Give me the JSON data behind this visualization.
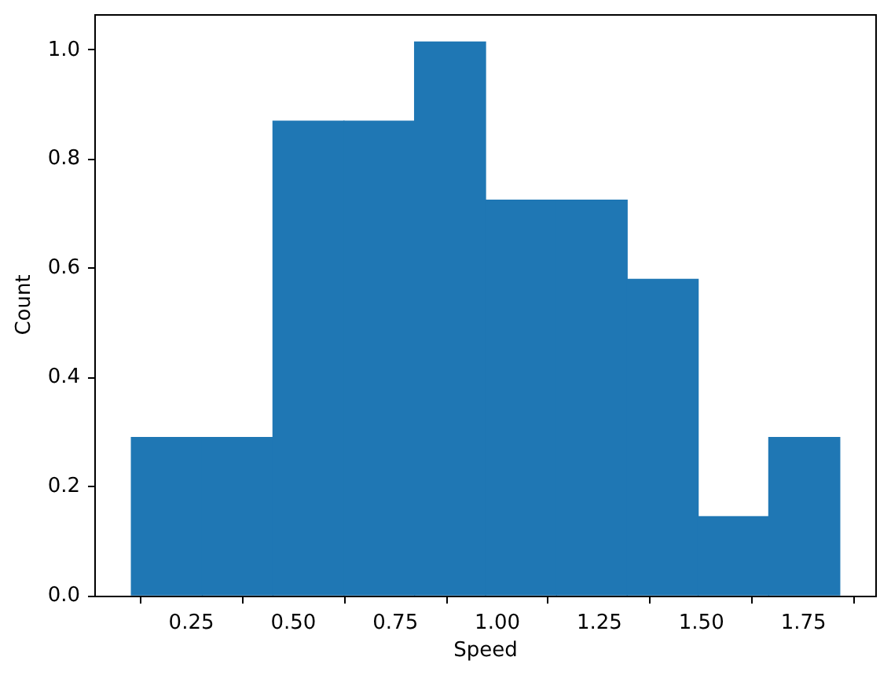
{
  "chart_data": {
    "type": "histogram",
    "xlabel": "Speed",
    "ylabel": "Count",
    "bins": [
      0.103,
      0.277,
      0.45,
      0.624,
      0.797,
      0.971,
      1.145,
      1.318,
      1.492,
      1.665,
      1.839
    ],
    "values": [
      0.29,
      0.29,
      0.87,
      0.87,
      1.015,
      0.725,
      0.725,
      0.58,
      0.145,
      0.29
    ],
    "color": "#1f77b4",
    "xlim": [
      0.016,
      1.926
    ],
    "ylim": [
      0,
      1.066
    ],
    "xticks": [
      0.25,
      {
        "value": 0.5,
        "label": "0.50"
      },
      0.75,
      {
        "value": 1,
        "label": "1.00"
      },
      1.25,
      {
        "value": 1.5,
        "label": "1.50"
      },
      1.75
    ],
    "yticks": [
      {
        "value": 0,
        "label": "0.0"
      },
      0.2,
      0.4,
      0.6,
      0.8,
      {
        "value": 1,
        "label": "1.0"
      }
    ]
  }
}
